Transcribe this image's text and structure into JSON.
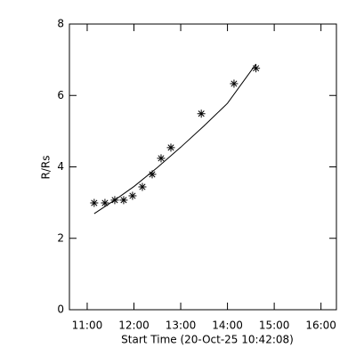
{
  "chart_data": {
    "type": "scatter",
    "x_label": "Start Time (20-Oct-25 10:42:08)",
    "y_label": "R/Rs",
    "x": [
      11.15,
      11.38,
      11.59,
      11.78,
      11.97,
      12.18,
      12.39,
      12.58,
      12.79,
      13.44,
      14.14,
      14.61
    ],
    "values": [
      2.99,
      2.99,
      3.07,
      3.07,
      3.19,
      3.44,
      3.79,
      4.24,
      4.54,
      5.49,
      6.33,
      6.76
    ],
    "color": "#000000",
    "fit": {
      "x": [
        11.15,
        11.6,
        12.0,
        12.5,
        13.0,
        13.5,
        14.0,
        14.61
      ],
      "values": [
        2.69,
        3.08,
        3.45,
        3.98,
        4.55,
        5.15,
        5.78,
        6.88
      ]
    },
    "xlim": [
      10.62,
      16.33
    ],
    "ylim": [
      0,
      8
    ],
    "xticks": [
      {
        "value": 11,
        "label": "11:00"
      },
      {
        "value": 12,
        "label": "12:00"
      },
      {
        "value": 13,
        "label": "13:00"
      },
      {
        "value": 14,
        "label": "14:00"
      },
      {
        "value": 15,
        "label": "15:00"
      },
      {
        "value": 16,
        "label": "16:00"
      }
    ],
    "yticks": [
      0,
      2,
      4,
      6,
      8
    ]
  }
}
